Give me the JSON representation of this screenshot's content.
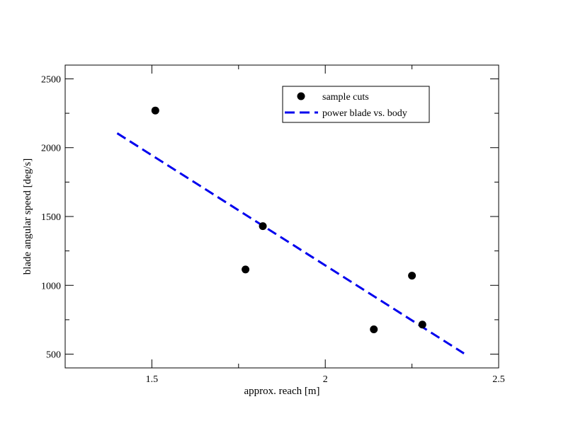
{
  "chart_data": {
    "type": "scatter",
    "title": "",
    "xlabel": "approx. reach [m]",
    "ylabel": "blade angular speed [deg/s]",
    "xlim": [
      1.25,
      2.5
    ],
    "ylim": [
      400,
      2600
    ],
    "xticks": [
      1.5,
      2,
      2.5
    ],
    "xtick_labels": [
      "1.5",
      "2",
      "2.5"
    ],
    "yticks": [
      500,
      1000,
      1500,
      2000,
      2500
    ],
    "ytick_labels": [
      "500",
      "1000",
      "1500",
      "2000",
      "2500"
    ],
    "x_minor_step": 0.25,
    "y_minor_step": 250,
    "grid": false,
    "legend_position": "top-right",
    "series": [
      {
        "name": "sample cuts",
        "kind": "scatter",
        "color": "#000000",
        "marker": "circle",
        "points": [
          {
            "x": 1.51,
            "y": 2270
          },
          {
            "x": 1.77,
            "y": 1115
          },
          {
            "x": 1.82,
            "y": 1430
          },
          {
            "x": 2.14,
            "y": 680
          },
          {
            "x": 2.25,
            "y": 1070
          },
          {
            "x": 2.28,
            "y": 715
          }
        ]
      },
      {
        "name": "power blade vs. body",
        "kind": "line",
        "color": "#0000ee",
        "dash": "dashed",
        "points": [
          {
            "x": 1.4,
            "y": 2105
          },
          {
            "x": 2.4,
            "y": 505
          }
        ]
      }
    ]
  }
}
